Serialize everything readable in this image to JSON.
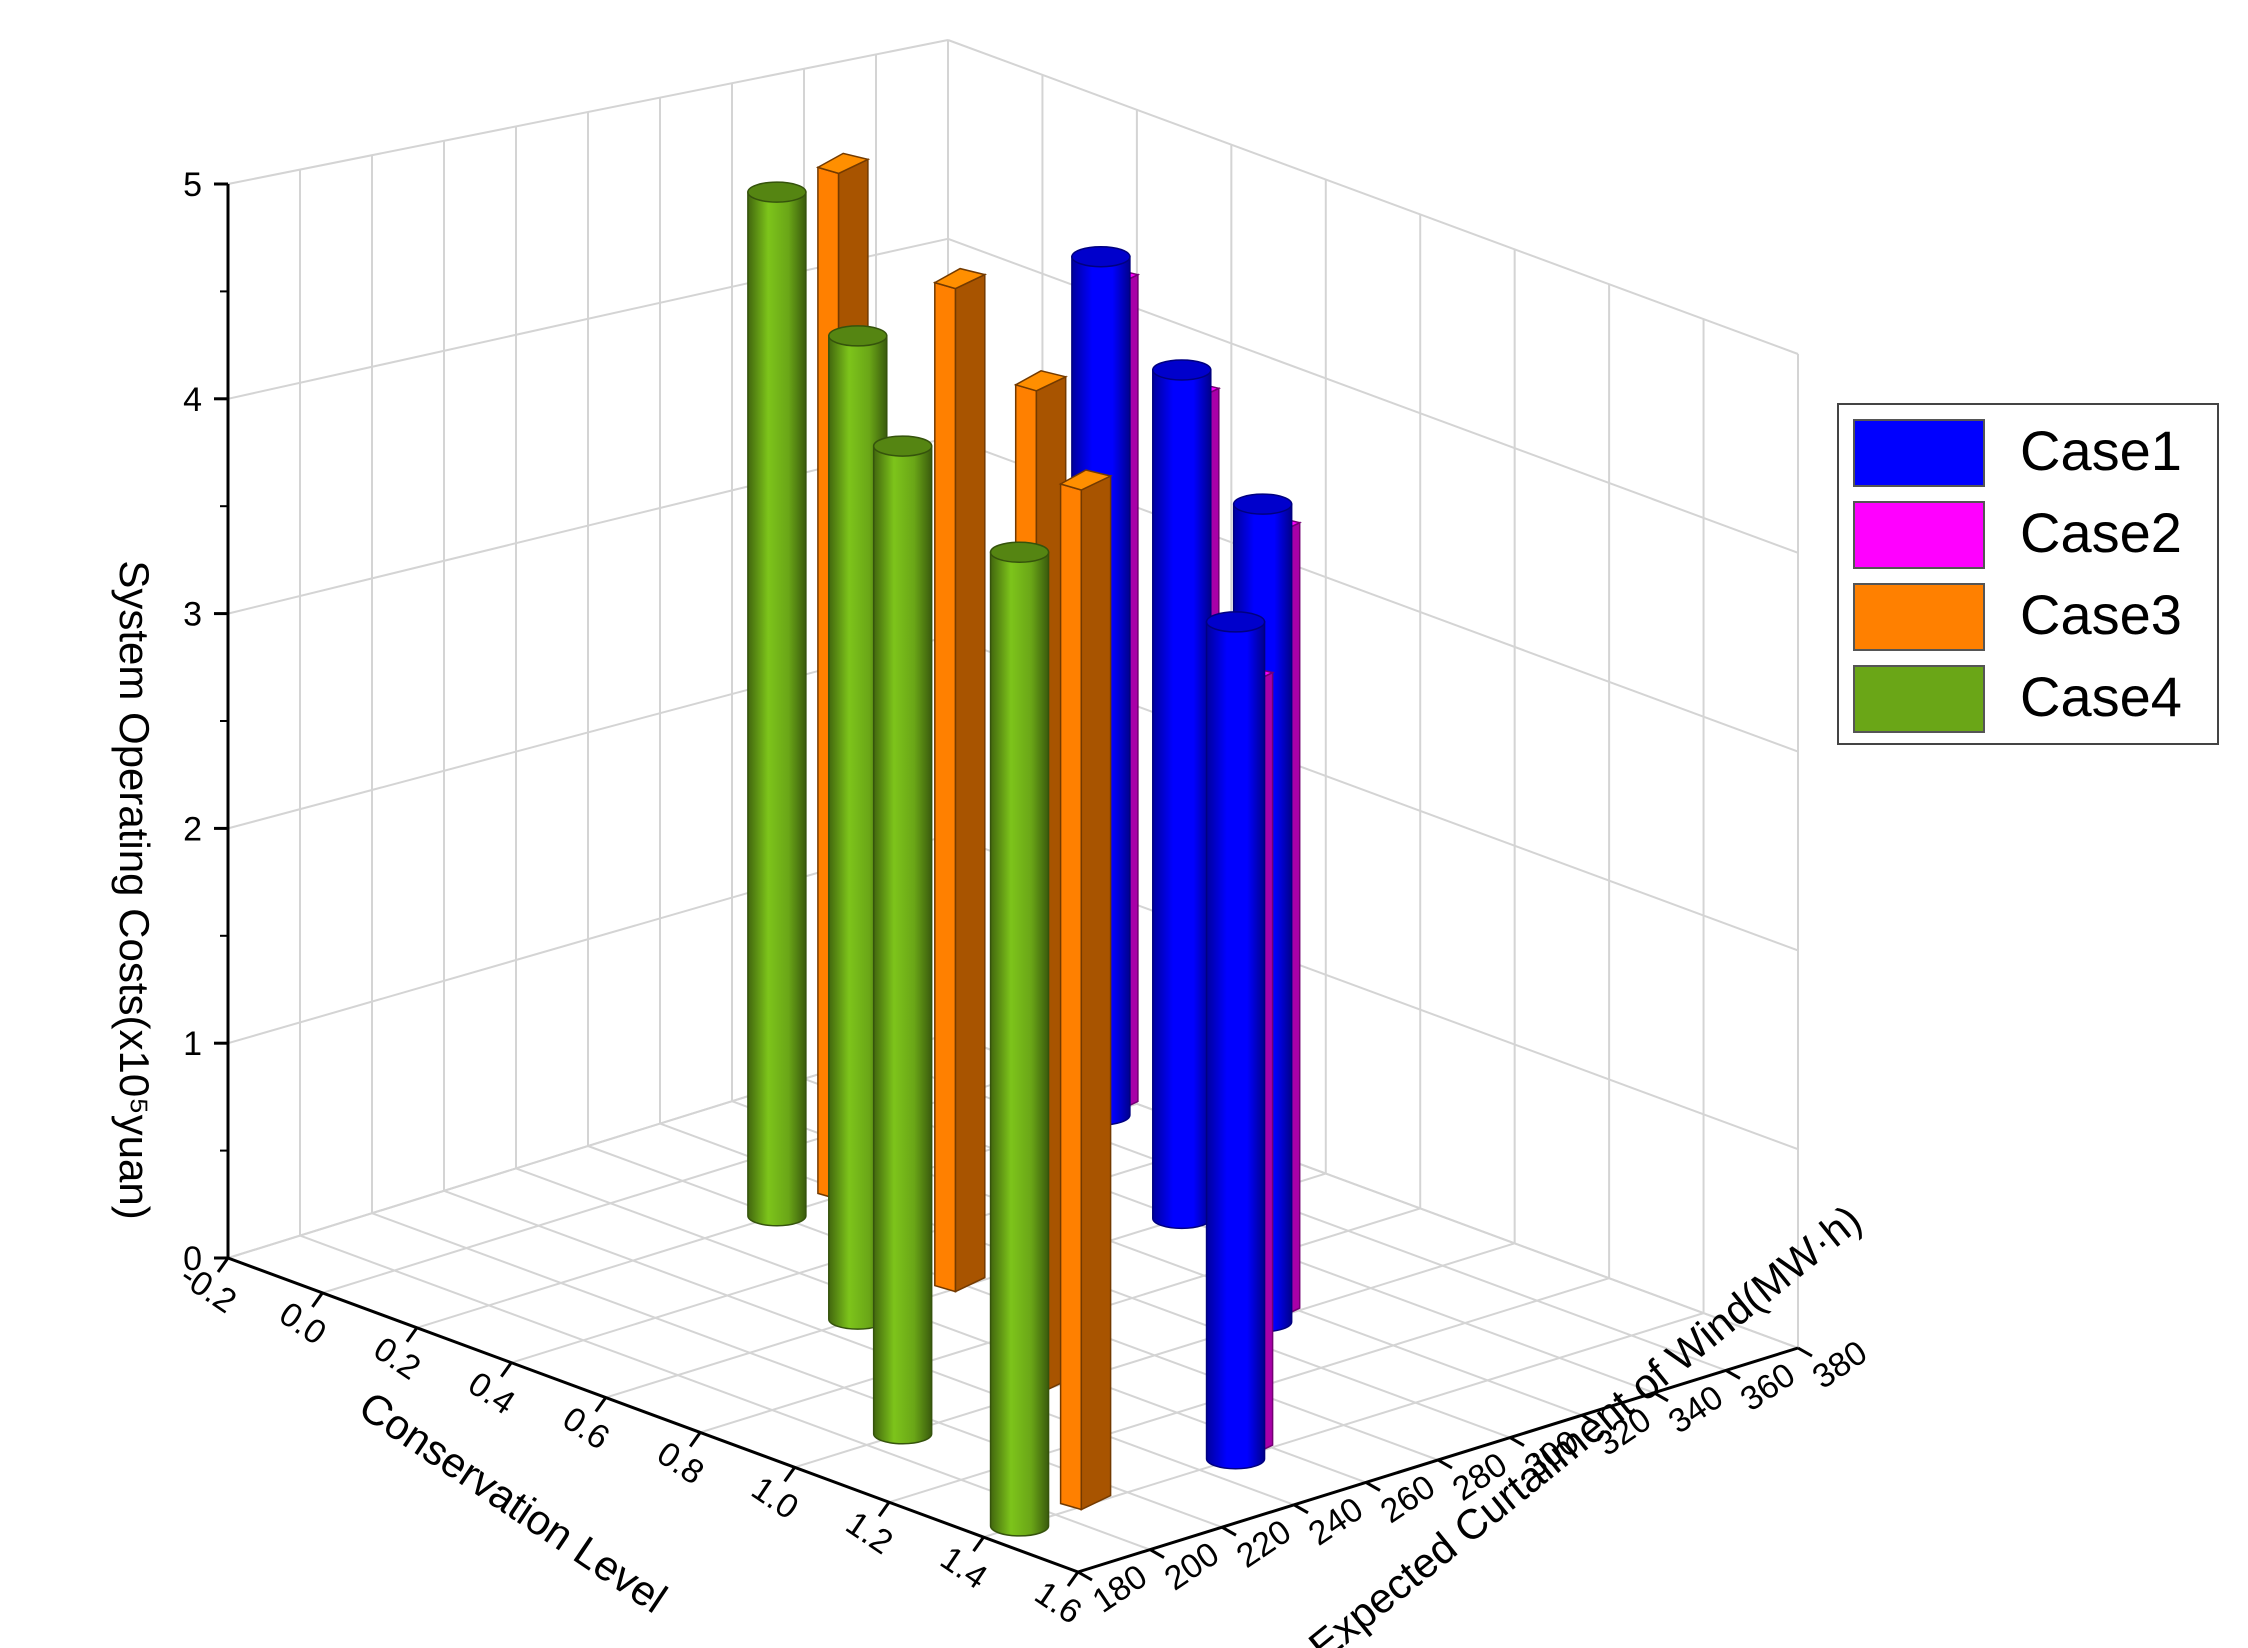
{
  "chart_data": {
    "type": "bar",
    "subtype": "3d-bar",
    "title": "",
    "zlabel": "System Operating Costs(x10⁵yuan)",
    "xlabel": "Conservation Level",
    "ylabel": "Expected Curtailment of Wind(MW·h)",
    "zlim": [
      0,
      5
    ],
    "xlim": [
      -0.2,
      1.6
    ],
    "ylim": [
      180,
      380
    ],
    "z_ticks": [
      "0",
      "1",
      "2",
      "3",
      "4",
      "5"
    ],
    "x_ticks": [
      "-0.2",
      "0.0",
      "0.2",
      "0.4",
      "0.6",
      "0.8",
      "1.0",
      "1.2",
      "1.4",
      "1.6"
    ],
    "y_ticks": [
      "180",
      "200",
      "220",
      "240",
      "260",
      "280",
      "300",
      "320",
      "340",
      "360",
      "380"
    ],
    "grid": true,
    "legend_position": "right",
    "series": [
      {
        "name": "Case1",
        "color": "#0000ff",
        "shape": "cylinder",
        "points": [
          {
            "x": 0.2,
            "y": 370,
            "z": 4.3
          },
          {
            "x": 0.6,
            "y": 340,
            "z": 4.2
          },
          {
            "x": 1.0,
            "y": 310,
            "z": 4.0
          },
          {
            "x": 1.4,
            "y": 250,
            "z": 4.0
          }
        ]
      },
      {
        "name": "Case2",
        "color": "#ff00ff",
        "shape": "box",
        "points": [
          {
            "x": 0.2,
            "y": 375,
            "z": 4.15
          },
          {
            "x": 0.6,
            "y": 345,
            "z": 4.05
          },
          {
            "x": 1.0,
            "y": 315,
            "z": 3.85
          },
          {
            "x": 1.4,
            "y": 255,
            "z": 3.7
          }
        ]
      },
      {
        "name": "Case3",
        "color": "#ff8000",
        "shape": "box",
        "points": [
          {
            "x": 0.2,
            "y": 300,
            "z": 5.0
          },
          {
            "x": 0.6,
            "y": 280,
            "z": 4.85
          },
          {
            "x": 1.0,
            "y": 250,
            "z": 4.8
          },
          {
            "x": 1.4,
            "y": 210,
            "z": 4.8
          }
        ]
      },
      {
        "name": "Case4",
        "color": "#6aa617",
        "shape": "cylinder",
        "points": [
          {
            "x": 0.2,
            "y": 280,
            "z": 4.95
          },
          {
            "x": 0.6,
            "y": 250,
            "z": 4.7
          },
          {
            "x": 1.0,
            "y": 210,
            "z": 4.65
          },
          {
            "x": 1.4,
            "y": 190,
            "z": 4.55
          }
        ]
      }
    ]
  }
}
